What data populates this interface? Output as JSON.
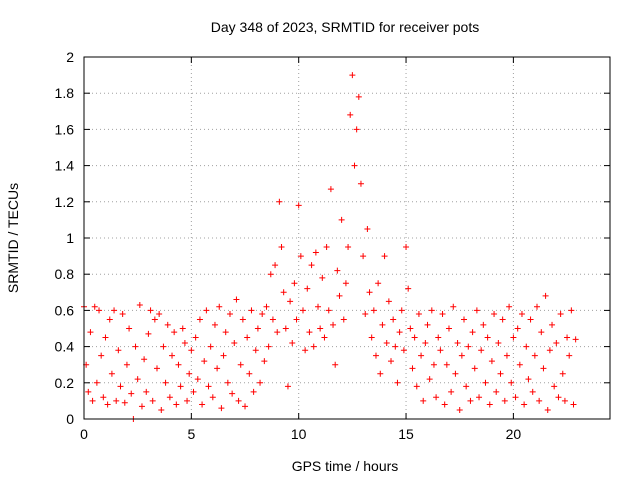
{
  "chart_data": {
    "type": "scatter",
    "title": "Day 348 of 2023, SRMTID for receiver pots",
    "xlabel": "GPS time / hours",
    "ylabel": "SRMTID / TECUs",
    "xlim": [
      0,
      24.5
    ],
    "ylim": [
      0,
      2
    ],
    "xticks": [
      0,
      5,
      10,
      15,
      20
    ],
    "xtick_labels": [
      "0",
      "5",
      "10",
      "15",
      "20"
    ],
    "yticks": [
      0,
      0.2,
      0.4,
      0.6,
      0.8,
      1,
      1.2,
      1.4,
      1.6,
      1.8,
      2
    ],
    "ytick_labels": [
      "0",
      "0.2",
      "0.4",
      "0.6",
      "0.8",
      "1",
      "1.2",
      "1.4",
      "1.6",
      "1.8",
      "2"
    ],
    "grid": true,
    "marker": "+",
    "color": "#ff0000",
    "series": [
      {
        "name": "SRMTID",
        "points": [
          [
            0.0,
            0.62
          ],
          [
            0.1,
            0.3
          ],
          [
            0.2,
            0.15
          ],
          [
            0.3,
            0.48
          ],
          [
            0.4,
            0.1
          ],
          [
            0.5,
            0.62
          ],
          [
            0.6,
            0.2
          ],
          [
            0.7,
            0.6
          ],
          [
            0.8,
            0.35
          ],
          [
            0.9,
            0.12
          ],
          [
            1.0,
            0.45
          ],
          [
            1.1,
            0.08
          ],
          [
            1.2,
            0.55
          ],
          [
            1.3,
            0.25
          ],
          [
            1.4,
            0.6
          ],
          [
            1.5,
            0.1
          ],
          [
            1.6,
            0.38
          ],
          [
            1.7,
            0.18
          ],
          [
            1.8,
            0.58
          ],
          [
            1.9,
            0.09
          ],
          [
            2.0,
            0.3
          ],
          [
            2.1,
            0.5
          ],
          [
            2.2,
            0.14
          ],
          [
            2.3,
            0.0
          ],
          [
            2.4,
            0.4
          ],
          [
            2.5,
            0.22
          ],
          [
            2.6,
            0.63
          ],
          [
            2.7,
            0.07
          ],
          [
            2.8,
            0.33
          ],
          [
            2.9,
            0.15
          ],
          [
            3.0,
            0.47
          ],
          [
            3.1,
            0.6
          ],
          [
            3.2,
            0.1
          ],
          [
            3.3,
            0.55
          ],
          [
            3.4,
            0.28
          ],
          [
            3.5,
            0.58
          ],
          [
            3.6,
            0.05
          ],
          [
            3.7,
            0.4
          ],
          [
            3.8,
            0.2
          ],
          [
            3.9,
            0.52
          ],
          [
            4.0,
            0.12
          ],
          [
            4.1,
            0.35
          ],
          [
            4.2,
            0.48
          ],
          [
            4.3,
            0.08
          ],
          [
            4.4,
            0.3
          ],
          [
            4.5,
            0.18
          ],
          [
            4.6,
            0.5
          ],
          [
            4.7,
            0.42
          ],
          [
            4.8,
            0.1
          ],
          [
            4.9,
            0.25
          ],
          [
            5.0,
            0.38
          ],
          [
            5.1,
            0.15
          ],
          [
            5.2,
            0.45
          ],
          [
            5.3,
            0.22
          ],
          [
            5.4,
            0.55
          ],
          [
            5.5,
            0.08
          ],
          [
            5.6,
            0.32
          ],
          [
            5.7,
            0.6
          ],
          [
            5.8,
            0.18
          ],
          [
            5.9,
            0.4
          ],
          [
            6.0,
            0.12
          ],
          [
            6.1,
            0.52
          ],
          [
            6.2,
            0.28
          ],
          [
            6.3,
            0.62
          ],
          [
            6.4,
            0.06
          ],
          [
            6.5,
            0.35
          ],
          [
            6.6,
            0.48
          ],
          [
            6.7,
            0.2
          ],
          [
            6.8,
            0.58
          ],
          [
            6.9,
            0.14
          ],
          [
            7.0,
            0.42
          ],
          [
            7.1,
            0.66
          ],
          [
            7.2,
            0.1
          ],
          [
            7.3,
            0.3
          ],
          [
            7.4,
            0.55
          ],
          [
            7.5,
            0.07
          ],
          [
            7.6,
            0.45
          ],
          [
            7.7,
            0.25
          ],
          [
            7.8,
            0.6
          ],
          [
            7.9,
            0.15
          ],
          [
            8.0,
            0.38
          ],
          [
            8.1,
            0.5
          ],
          [
            8.2,
            0.2
          ],
          [
            8.3,
            0.58
          ],
          [
            8.4,
            0.32
          ],
          [
            8.5,
            0.62
          ],
          [
            8.6,
            0.4
          ],
          [
            8.7,
            0.8
          ],
          [
            8.8,
            0.55
          ],
          [
            8.9,
            0.85
          ],
          [
            9.0,
            0.48
          ],
          [
            9.1,
            1.2
          ],
          [
            9.2,
            0.95
          ],
          [
            9.3,
            0.7
          ],
          [
            9.4,
            0.5
          ],
          [
            9.5,
            0.18
          ],
          [
            9.6,
            0.65
          ],
          [
            9.7,
            0.42
          ],
          [
            9.8,
            0.75
          ],
          [
            9.9,
            0.55
          ],
          [
            10.0,
            1.18
          ],
          [
            10.1,
            0.9
          ],
          [
            10.2,
            0.6
          ],
          [
            10.3,
            0.38
          ],
          [
            10.4,
            0.72
          ],
          [
            10.5,
            0.48
          ],
          [
            10.6,
            0.85
          ],
          [
            10.7,
            0.4
          ],
          [
            10.8,
            0.92
          ],
          [
            10.9,
            0.62
          ],
          [
            11.0,
            0.5
          ],
          [
            11.1,
            0.78
          ],
          [
            11.2,
            0.45
          ],
          [
            11.3,
            0.95
          ],
          [
            11.4,
            0.6
          ],
          [
            11.5,
            1.27
          ],
          [
            11.6,
            0.52
          ],
          [
            11.7,
            0.3
          ],
          [
            11.8,
            0.82
          ],
          [
            11.9,
            0.68
          ],
          [
            12.0,
            1.1
          ],
          [
            12.1,
            0.55
          ],
          [
            12.2,
            0.75
          ],
          [
            12.3,
            0.95
          ],
          [
            12.4,
            1.68
          ],
          [
            12.5,
            1.9
          ],
          [
            12.6,
            1.4
          ],
          [
            12.7,
            1.6
          ],
          [
            12.8,
            1.78
          ],
          [
            12.9,
            1.3
          ],
          [
            13.0,
            0.9
          ],
          [
            13.1,
            0.58
          ],
          [
            13.2,
            1.05
          ],
          [
            13.3,
            0.7
          ],
          [
            13.4,
            0.45
          ],
          [
            13.5,
            0.6
          ],
          [
            13.6,
            0.35
          ],
          [
            13.7,
            0.75
          ],
          [
            13.8,
            0.25
          ],
          [
            13.9,
            0.52
          ],
          [
            14.0,
            0.9
          ],
          [
            14.1,
            0.42
          ],
          [
            14.2,
            0.65
          ],
          [
            14.3,
            0.32
          ],
          [
            14.4,
            0.55
          ],
          [
            14.5,
            0.4
          ],
          [
            14.6,
            0.2
          ],
          [
            14.7,
            0.48
          ],
          [
            14.8,
            0.6
          ],
          [
            14.9,
            0.38
          ],
          [
            15.0,
            0.95
          ],
          [
            15.1,
            0.72
          ],
          [
            15.2,
            0.5
          ],
          [
            15.3,
            0.28
          ],
          [
            15.4,
            0.45
          ],
          [
            15.5,
            0.18
          ],
          [
            15.6,
            0.58
          ],
          [
            15.7,
            0.35
          ],
          [
            15.8,
            0.1
          ],
          [
            15.9,
            0.42
          ],
          [
            16.0,
            0.52
          ],
          [
            16.1,
            0.22
          ],
          [
            16.2,
            0.6
          ],
          [
            16.3,
            0.3
          ],
          [
            16.4,
            0.12
          ],
          [
            16.5,
            0.45
          ],
          [
            16.6,
            0.38
          ],
          [
            16.7,
            0.58
          ],
          [
            16.8,
            0.08
          ],
          [
            16.9,
            0.3
          ],
          [
            17.0,
            0.5
          ],
          [
            17.1,
            0.15
          ],
          [
            17.2,
            0.62
          ],
          [
            17.3,
            0.25
          ],
          [
            17.4,
            0.42
          ],
          [
            17.5,
            0.05
          ],
          [
            17.6,
            0.35
          ],
          [
            17.7,
            0.55
          ],
          [
            17.8,
            0.18
          ],
          [
            17.9,
            0.4
          ],
          [
            18.0,
            0.1
          ],
          [
            18.1,
            0.48
          ],
          [
            18.2,
            0.28
          ],
          [
            18.3,
            0.6
          ],
          [
            18.4,
            0.12
          ],
          [
            18.5,
            0.38
          ],
          [
            18.6,
            0.52
          ],
          [
            18.7,
            0.2
          ],
          [
            18.8,
            0.45
          ],
          [
            18.9,
            0.08
          ],
          [
            19.0,
            0.32
          ],
          [
            19.1,
            0.58
          ],
          [
            19.2,
            0.15
          ],
          [
            19.3,
            0.42
          ],
          [
            19.4,
            0.25
          ],
          [
            19.5,
            0.55
          ],
          [
            19.6,
            0.1
          ],
          [
            19.7,
            0.35
          ],
          [
            19.8,
            0.62
          ],
          [
            19.9,
            0.2
          ],
          [
            20.0,
            0.45
          ],
          [
            20.1,
            0.12
          ],
          [
            20.2,
            0.5
          ],
          [
            20.3,
            0.3
          ],
          [
            20.4,
            0.58
          ],
          [
            20.5,
            0.08
          ],
          [
            20.6,
            0.4
          ],
          [
            20.7,
            0.22
          ],
          [
            20.8,
            0.55
          ],
          [
            20.9,
            0.15
          ],
          [
            21.0,
            0.35
          ],
          [
            21.1,
            0.62
          ],
          [
            21.2,
            0.1
          ],
          [
            21.3,
            0.48
          ],
          [
            21.4,
            0.28
          ],
          [
            21.5,
            0.68
          ],
          [
            21.6,
            0.05
          ],
          [
            21.7,
            0.38
          ],
          [
            21.8,
            0.52
          ],
          [
            21.9,
            0.18
          ],
          [
            22.0,
            0.42
          ],
          [
            22.1,
            0.12
          ],
          [
            22.2,
            0.58
          ],
          [
            22.3,
            0.25
          ],
          [
            22.4,
            0.1
          ],
          [
            22.5,
            0.45
          ],
          [
            22.6,
            0.35
          ],
          [
            22.7,
            0.6
          ],
          [
            22.8,
            0.08
          ],
          [
            22.9,
            0.44
          ]
        ]
      }
    ]
  }
}
